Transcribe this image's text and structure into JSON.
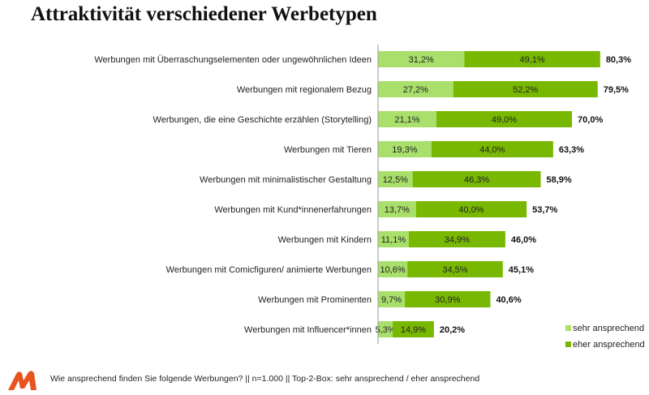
{
  "title": "Attraktivität verschiedener Werbetypen",
  "footer": {
    "note": "Wie ansprechend finden Sie folgende Werbungen? || n=1.000 || Top-2-Box: sehr ansprechend / eher ansprechend",
    "logo_text": "M",
    "logo_color": "#e8531e"
  },
  "chart_data": {
    "type": "bar",
    "orientation": "horizontal",
    "stacked": true,
    "categories": [
      "Werbungen mit Überraschungselementen oder ungewöhnlichen Ideen",
      "Werbungen mit regionalem Bezug",
      "Werbungen, die eine Geschichte erzählen (Storytelling)",
      "Werbungen mit Tieren",
      "Werbungen mit minimalistischer Gestaltung",
      "Werbungen mit Kund*innenerfahrungen",
      "Werbungen mit Kindern",
      "Werbungen mit Comicfiguren/ animierte Werbungen",
      "Werbungen mit Prominenten",
      "Werbungen mit Influencer*innen"
    ],
    "series": [
      {
        "name": "sehr ansprechend",
        "color": "#a9df6b",
        "values": [
          31.2,
          27.2,
          21.1,
          19.3,
          12.5,
          13.7,
          11.1,
          10.6,
          9.7,
          5.3
        ],
        "labels": [
          "31,2%",
          "27,2%",
          "21,1%",
          "19,3%",
          "12,5%",
          "13,7%",
          "11,1%",
          "10,6%",
          "9,7%",
          "5,3%"
        ]
      },
      {
        "name": "eher ansprechend",
        "color": "#78b800",
        "values": [
          49.1,
          52.2,
          49.0,
          44.0,
          46.3,
          40.0,
          34.9,
          34.5,
          30.9,
          14.9
        ],
        "labels": [
          "49,1%",
          "52,2%",
          "49,0%",
          "44,0%",
          "46,3%",
          "40,0%",
          "34,9%",
          "34,5%",
          "30,9%",
          "14,9%"
        ]
      }
    ],
    "totals": [
      80.3,
      79.5,
      70.0,
      63.3,
      58.9,
      53.7,
      46.0,
      45.1,
      40.6,
      20.2
    ],
    "total_labels": [
      "80,3%",
      "79,5%",
      "70,0%",
      "63,3%",
      "58,9%",
      "53,7%",
      "46,0%",
      "45,1%",
      "40,6%",
      "20,2%"
    ],
    "legend_position": "bottom-right",
    "grid": false
  }
}
